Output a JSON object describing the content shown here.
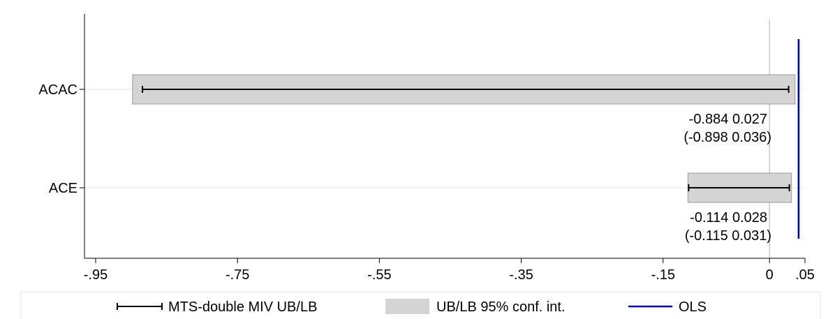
{
  "chart_data": {
    "type": "interval",
    "xlim": [
      -0.95,
      0.05
    ],
    "xticks": [
      {
        "value": -0.95,
        "label": "-.95"
      },
      {
        "value": -0.75,
        "label": "-.75"
      },
      {
        "value": -0.55,
        "label": "-.55"
      },
      {
        "value": -0.35,
        "label": "-.35"
      },
      {
        "value": -0.15,
        "label": "-.15"
      },
      {
        "value": 0,
        "label": "0"
      },
      {
        "value": 0.05,
        "label": ".05"
      }
    ],
    "categories": [
      "ACAC",
      "ACE"
    ],
    "bounds": [
      {
        "category": "ACAC",
        "lb": -0.884,
        "ub": 0.027,
        "ci_lb": -0.898,
        "ci_ub": 0.036,
        "line1": "-0.884   0.027",
        "line2": "(-0.898   0.036)"
      },
      {
        "category": "ACE",
        "lb": -0.114,
        "ub": 0.028,
        "ci_lb": -0.115,
        "ci_ub": 0.031,
        "line1": "-0.114   0.028",
        "line2": "(-0.115   0.031)"
      }
    ],
    "ols": 0.041,
    "reference_line": 0,
    "legend": {
      "placement": "bottom",
      "entries": [
        "MTS-double MIV UB/LB",
        "UB/LB 95% conf. int.",
        "OLS"
      ]
    },
    "colors": {
      "bar": "#d4d4d4",
      "bar_edge": "#9a9a9a",
      "interval": "#000000",
      "ols": "#0000cc",
      "grid": "#e6e6e6",
      "zero_line": "#b0b0b0"
    }
  }
}
